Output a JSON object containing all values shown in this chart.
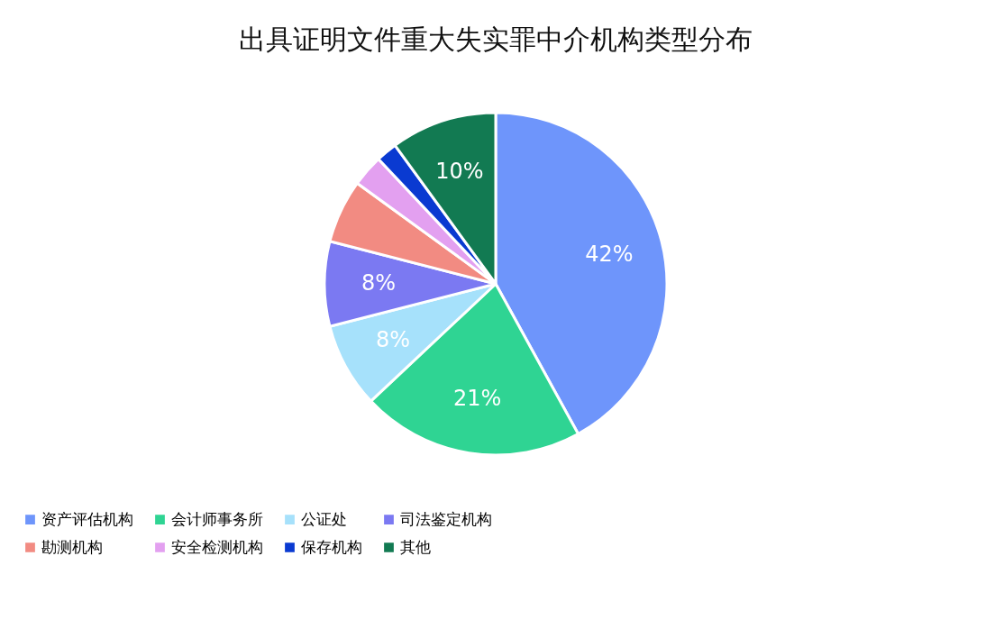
{
  "chart_data": {
    "type": "pie",
    "title": "出具证明文件重大失实罪中介机构类型分布",
    "categories": [
      "资产评估机构",
      "会计师事务所",
      "公证处",
      "司法鉴定机构",
      "勘测机构",
      "安全检测机构",
      "保存机构",
      "其他"
    ],
    "values": [
      42,
      21,
      8,
      8,
      6,
      3,
      2,
      10
    ],
    "colors": [
      "#6e95fb",
      "#2fd493",
      "#a6e1fb",
      "#7b79f2",
      "#f28b82",
      "#e3a0f0",
      "#0a3ad1",
      "#127a52"
    ],
    "value_labels": [
      "42%",
      "21%",
      "8%",
      "8%",
      null,
      null,
      null,
      "10%"
    ],
    "legend": "bottom"
  }
}
